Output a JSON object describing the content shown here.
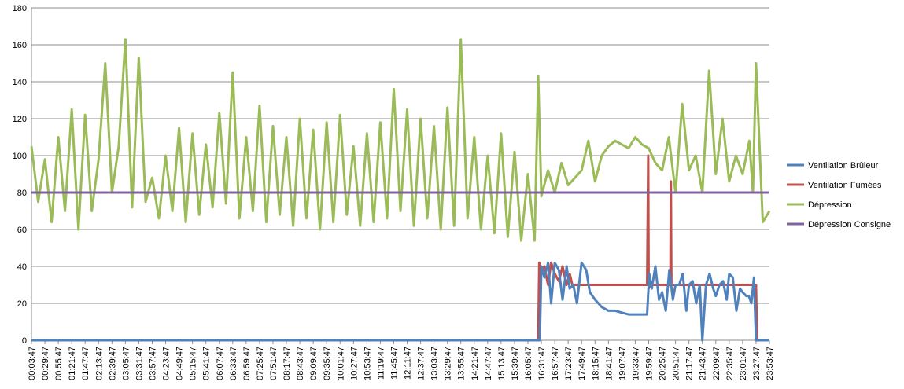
{
  "chart_data": {
    "type": "line",
    "title": "",
    "xlabel": "",
    "ylabel": "",
    "ylim": [
      0,
      180
    ],
    "y_ticks": [
      0,
      20,
      40,
      60,
      80,
      100,
      120,
      140,
      160,
      180
    ],
    "grid": "horizontal",
    "legend_position": "right",
    "x_tick_labels": [
      "00:03:47",
      "00:29:47",
      "00:55:47",
      "01:21:47",
      "01:47:47",
      "02:13:47",
      "02:39:47",
      "03:05:47",
      "03:31:47",
      "03:57:47",
      "04:23:47",
      "04:49:47",
      "05:15:47",
      "05:41:47",
      "06:07:47",
      "06:33:47",
      "06:59:47",
      "07:25:47",
      "07:51:47",
      "08:17:47",
      "08:43:47",
      "09:09:47",
      "09:35:47",
      "10:01:47",
      "10:27:47",
      "10:53:47",
      "11:19:47",
      "11:45:47",
      "12:11:47",
      "12:37:47",
      "13:03:47",
      "13:29:47",
      "13:55:47",
      "14:21:47",
      "14:47:47",
      "15:13:47",
      "15:39:47",
      "16:05:47",
      "16:31:47",
      "16:57:47",
      "17:23:47",
      "17:49:47",
      "18:15:47",
      "18:41:47",
      "19:07:47",
      "19:33:47",
      "19:59:47",
      "20:25:47",
      "20:51:47",
      "21:17:47",
      "21:43:47",
      "22:09:47",
      "22:35:47",
      "23:01:47",
      "23:27:47",
      "23:53:47"
    ],
    "series": [
      {
        "name": "Ventilation Brûleur",
        "color": "#4f81bd",
        "x": [
          "00:03:47",
          "16:28:47",
          "16:31:47",
          "16:37:47",
          "16:44:47",
          "16:50:47",
          "16:57:47",
          "17:05:47",
          "17:12:47",
          "17:20:47",
          "17:26:47",
          "17:33:47",
          "17:40:47",
          "17:49:47",
          "17:58:47",
          "18:05:47",
          "18:15:47",
          "18:28:47",
          "18:41:47",
          "18:54:47",
          "19:07:47",
          "19:20:47",
          "19:33:47",
          "19:48:47",
          "19:56:47",
          "20:00:47",
          "20:05:47",
          "20:12:47",
          "20:19:47",
          "20:25:47",
          "20:32:47",
          "20:39:47",
          "20:46:47",
          "20:51:47",
          "20:58:47",
          "21:05:47",
          "21:12:47",
          "21:17:47",
          "21:24:47",
          "21:31:47",
          "21:38:47",
          "21:43:47",
          "21:50:47",
          "21:57:47",
          "22:04:47",
          "22:09:47",
          "22:16:47",
          "22:23:47",
          "22:30:47",
          "22:35:47",
          "22:42:47",
          "22:49:47",
          "22:56:47",
          "23:01:47",
          "23:08:47",
          "23:13:47",
          "23:18:47",
          "23:23:47",
          "23:27:47",
          "23:53:47"
        ],
        "values": [
          0,
          0,
          40,
          34,
          42,
          20,
          42,
          38,
          22,
          40,
          28,
          30,
          20,
          42,
          38,
          26,
          22,
          18,
          16,
          16,
          15,
          14,
          14,
          14,
          14,
          36,
          28,
          40,
          22,
          26,
          16,
          38,
          22,
          30,
          30,
          36,
          16,
          30,
          32,
          20,
          30,
          0,
          30,
          36,
          28,
          24,
          30,
          32,
          22,
          36,
          34,
          16,
          28,
          26,
          24,
          24,
          20,
          34,
          0,
          0
        ]
      },
      {
        "name": "Ventilation Fumées",
        "color": "#c0504d",
        "x": [
          "00:03:47",
          "16:25:47",
          "16:27:47",
          "16:31:47",
          "16:37:47",
          "16:44:47",
          "16:50:47",
          "16:57:47",
          "17:05:47",
          "17:12:47",
          "17:20:47",
          "17:26:47",
          "17:31:47",
          "19:56:47",
          "19:58:47",
          "19:59:47",
          "20:01:47",
          "20:41:47",
          "20:42:47",
          "20:43:47",
          "20:45:47",
          "23:27:47",
          "23:29:47",
          "23:53:47"
        ],
        "values": [
          0,
          0,
          42,
          38,
          40,
          30,
          42,
          36,
          32,
          40,
          30,
          36,
          30,
          30,
          100,
          28,
          30,
          30,
          86,
          30,
          30,
          30,
          0,
          0
        ]
      },
      {
        "name": "Dépression",
        "color": "#9bbb59",
        "x": [
          "00:03:47",
          "00:16:47",
          "00:29:47",
          "00:42:47",
          "00:55:47",
          "01:08:47",
          "01:21:47",
          "01:34:47",
          "01:47:47",
          "02:00:47",
          "02:13:47",
          "02:26:47",
          "02:39:47",
          "02:52:47",
          "03:05:47",
          "03:18:47",
          "03:31:47",
          "03:44:47",
          "03:57:47",
          "04:10:47",
          "04:23:47",
          "04:36:47",
          "04:49:47",
          "05:02:47",
          "05:15:47",
          "05:28:47",
          "05:41:47",
          "05:54:47",
          "06:07:47",
          "06:20:47",
          "06:33:47",
          "06:46:47",
          "06:59:47",
          "07:12:47",
          "07:25:47",
          "07:38:47",
          "07:51:47",
          "08:04:47",
          "08:17:47",
          "08:30:47",
          "08:43:47",
          "08:56:47",
          "09:09:47",
          "09:22:47",
          "09:35:47",
          "09:48:47",
          "10:01:47",
          "10:14:47",
          "10:27:47",
          "10:40:47",
          "10:53:47",
          "11:06:47",
          "11:19:47",
          "11:32:47",
          "11:45:47",
          "11:58:47",
          "12:11:47",
          "12:24:47",
          "12:37:47",
          "12:50:47",
          "13:03:47",
          "13:16:47",
          "13:29:47",
          "13:42:47",
          "13:55:47",
          "14:08:47",
          "14:21:47",
          "14:34:47",
          "14:47:47",
          "15:00:47",
          "15:13:47",
          "15:26:47",
          "15:39:47",
          "15:52:47",
          "16:05:47",
          "16:18:47",
          "16:25:47",
          "16:31:47",
          "16:44:47",
          "16:57:47",
          "17:10:47",
          "17:23:47",
          "17:36:47",
          "17:49:47",
          "18:02:47",
          "18:15:47",
          "18:28:47",
          "18:41:47",
          "18:54:47",
          "19:07:47",
          "19:20:47",
          "19:33:47",
          "19:46:47",
          "19:59:47",
          "20:12:47",
          "20:25:47",
          "20:38:47",
          "20:51:47",
          "21:04:47",
          "21:17:47",
          "21:30:47",
          "21:43:47",
          "21:56:47",
          "22:09:47",
          "22:22:47",
          "22:35:47",
          "22:48:47",
          "23:01:47",
          "23:14:47",
          "23:21:47",
          "23:27:47",
          "23:40:47",
          "23:53:47"
        ],
        "values": [
          105,
          75,
          98,
          64,
          110,
          70,
          125,
          60,
          122,
          70,
          98,
          150,
          80,
          105,
          163,
          72,
          153,
          75,
          88,
          66,
          100,
          70,
          115,
          64,
          112,
          68,
          106,
          72,
          123,
          74,
          145,
          66,
          110,
          70,
          127,
          64,
          116,
          68,
          110,
          62,
          120,
          66,
          114,
          60,
          118,
          64,
          122,
          68,
          105,
          62,
          112,
          64,
          118,
          66,
          136,
          70,
          125,
          62,
          120,
          66,
          116,
          60,
          126,
          62,
          163,
          66,
          110,
          60,
          100,
          58,
          112,
          56,
          102,
          54,
          90,
          54,
          143,
          78,
          92,
          80,
          96,
          84,
          88,
          92,
          108,
          86,
          100,
          105,
          108,
          106,
          104,
          110,
          106,
          104,
          96,
          92,
          110,
          80,
          128,
          92,
          100,
          80,
          146,
          90,
          120,
          86,
          100,
          90,
          108,
          80,
          150,
          64,
          70
        ]
      },
      {
        "name": "Dépression Consigne",
        "color": "#8064a2",
        "x": [
          "00:03:47",
          "23:53:47"
        ],
        "values": [
          80,
          80
        ]
      }
    ]
  }
}
